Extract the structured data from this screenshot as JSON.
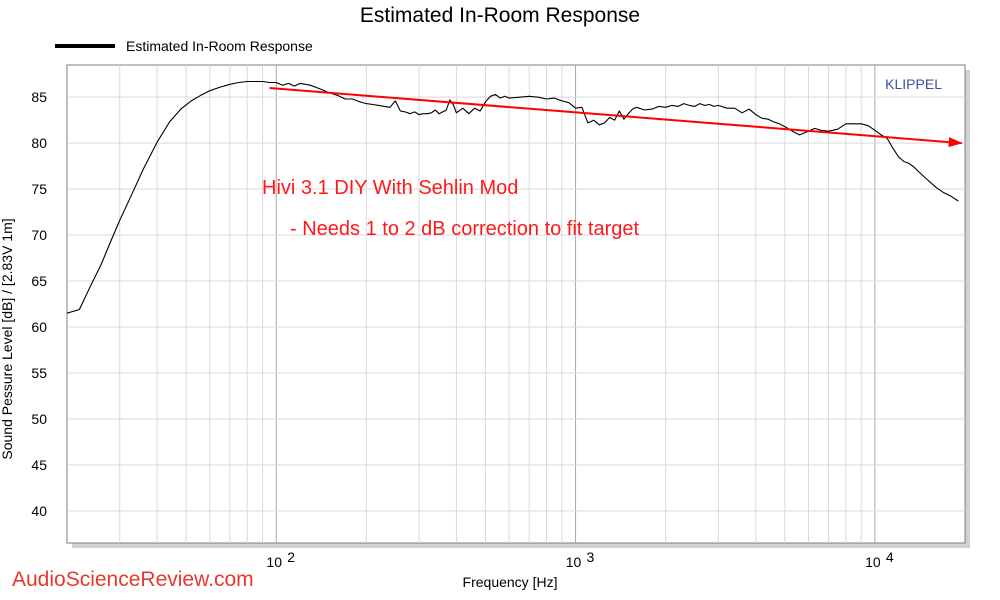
{
  "chart_data": {
    "type": "line",
    "title": "Estimated In-Room Response",
    "xlabel": "Frequency [Hz]",
    "ylabel": "Sound Pessure Level [dB]  / [2.83V 1m]",
    "xscale": "log",
    "xlim": [
      20,
      20000
    ],
    "ylim": [
      36.5,
      88.5
    ],
    "grid": true,
    "legend_position": "top-left",
    "x_ticks": [
      {
        "value": 100,
        "base": "10",
        "exp": "2"
      },
      {
        "value": 1000,
        "base": "10",
        "exp": "3"
      },
      {
        "value": 10000,
        "base": "10",
        "exp": "4"
      }
    ],
    "y_ticks": [
      40,
      45,
      50,
      55,
      60,
      65,
      70,
      75,
      80,
      85
    ],
    "series": [
      {
        "name": "Estimated In-Room Response",
        "color": "#000000",
        "x": [
          20,
          22,
          24,
          26,
          28,
          30,
          33,
          36,
          40,
          44,
          48,
          52,
          56,
          60,
          65,
          70,
          75,
          80,
          85,
          90,
          95,
          100,
          105,
          110,
          115,
          120,
          125,
          130,
          140,
          150,
          160,
          170,
          180,
          190,
          200,
          210,
          220,
          230,
          240,
          250,
          260,
          270,
          280,
          290,
          300,
          310,
          320,
          330,
          340,
          350,
          360,
          370,
          380,
          390,
          400,
          420,
          440,
          460,
          480,
          500,
          520,
          540,
          560,
          580,
          600,
          650,
          700,
          750,
          800,
          850,
          900,
          950,
          1000,
          1050,
          1100,
          1150,
          1200,
          1250,
          1300,
          1350,
          1400,
          1450,
          1500,
          1550,
          1600,
          1700,
          1800,
          1900,
          2000,
          2100,
          2200,
          2300,
          2400,
          2500,
          2600,
          2700,
          2800,
          2900,
          3000,
          3200,
          3400,
          3600,
          3800,
          4000,
          4200,
          4400,
          4600,
          4800,
          5000,
          5300,
          5600,
          6000,
          6300,
          6600,
          7000,
          7500,
          8000,
          8500,
          9000,
          9500,
          10000,
          10500,
          11000,
          11500,
          12000,
          12500,
          13000,
          13500,
          14000,
          15000,
          16000,
          17000,
          18000,
          19000
        ],
        "y": [
          61.5,
          61.9,
          64.5,
          66.8,
          69.3,
          71.6,
          74.5,
          77.2,
          80.1,
          82.3,
          83.7,
          84.6,
          85.2,
          85.7,
          86.1,
          86.4,
          86.6,
          86.7,
          86.7,
          86.7,
          86.6,
          86.6,
          86.3,
          86.5,
          86.2,
          86.5,
          86.4,
          86.3,
          85.9,
          85.5,
          85.2,
          84.8,
          84.8,
          84.5,
          84.3,
          84.2,
          84.1,
          84.0,
          83.9,
          84.6,
          83.5,
          83.4,
          83.2,
          83.4,
          83.1,
          83.2,
          83.2,
          83.3,
          83.6,
          83.2,
          83.4,
          83.6,
          84.7,
          84.2,
          83.3,
          83.8,
          83.2,
          83.8,
          83.5,
          84.5,
          85.1,
          85.3,
          84.9,
          85.1,
          84.9,
          85.0,
          85.1,
          85.0,
          84.8,
          84.9,
          84.6,
          84.4,
          83.8,
          83.9,
          82.2,
          82.5,
          82.0,
          82.2,
          82.8,
          82.5,
          83.5,
          82.6,
          83.2,
          83.7,
          83.9,
          83.6,
          83.7,
          84.0,
          83.9,
          84.1,
          84.0,
          84.3,
          84.1,
          84.0,
          84.3,
          84.1,
          84.2,
          84.0,
          84.1,
          83.8,
          83.8,
          83.3,
          83.7,
          83.1,
          82.7,
          82.6,
          82.3,
          82.1,
          81.8,
          81.3,
          80.9,
          81.3,
          81.6,
          81.4,
          81.3,
          81.5,
          82.1,
          82.1,
          82.1,
          81.9,
          81.4,
          80.9,
          80.5,
          79.4,
          78.5,
          78.0,
          77.8,
          77.4,
          76.9,
          76.0,
          75.2,
          74.6,
          74.2,
          73.7
        ]
      }
    ],
    "annotations": {
      "brand": "KLIPPEL",
      "line1": "Hivi 3.1 DIY With Sehlin Mod",
      "line2": "- Needs 1 to 2 dB correction to fit target",
      "watermark": "AudioScienceReview.com",
      "target_line": {
        "color": "#ff0000",
        "x": [
          95,
          19500
        ],
        "y": [
          86.0,
          80.0
        ]
      }
    }
  }
}
